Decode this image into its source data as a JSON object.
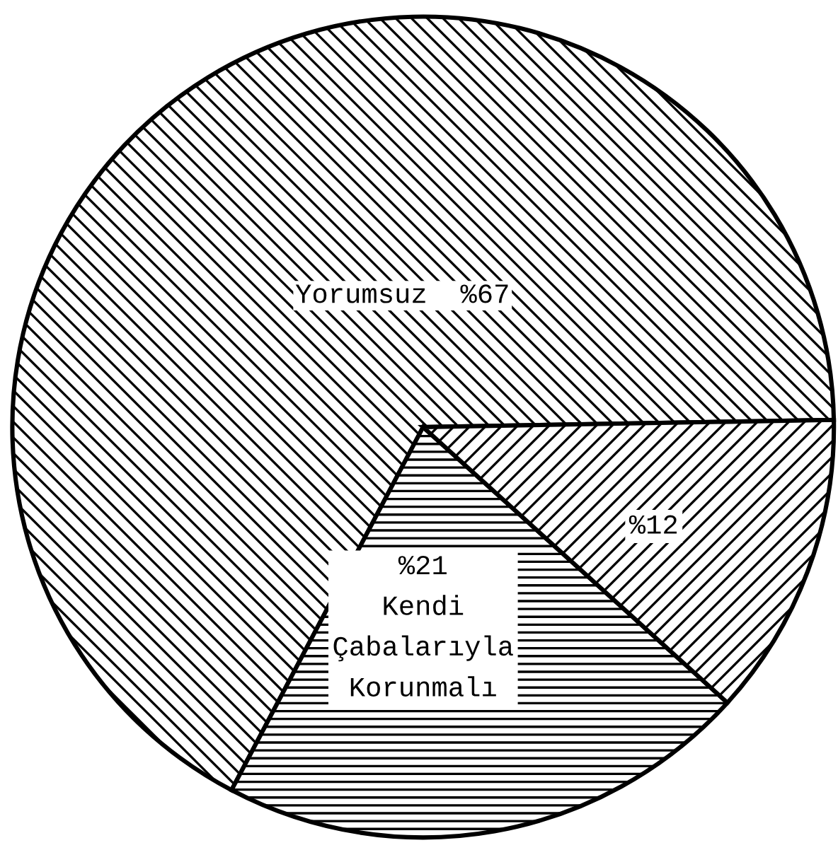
{
  "chart_data": {
    "type": "pie",
    "categories": [
      "Yorumsuz",
      "Kendi\nÇabalarıyla\nKorunmalı",
      null
    ],
    "values": [
      67,
      21,
      12
    ],
    "value_labels": [
      "%67",
      "%21",
      "%12"
    ],
    "colors": [
      "#000000",
      "#000000",
      "#000000"
    ]
  }
}
